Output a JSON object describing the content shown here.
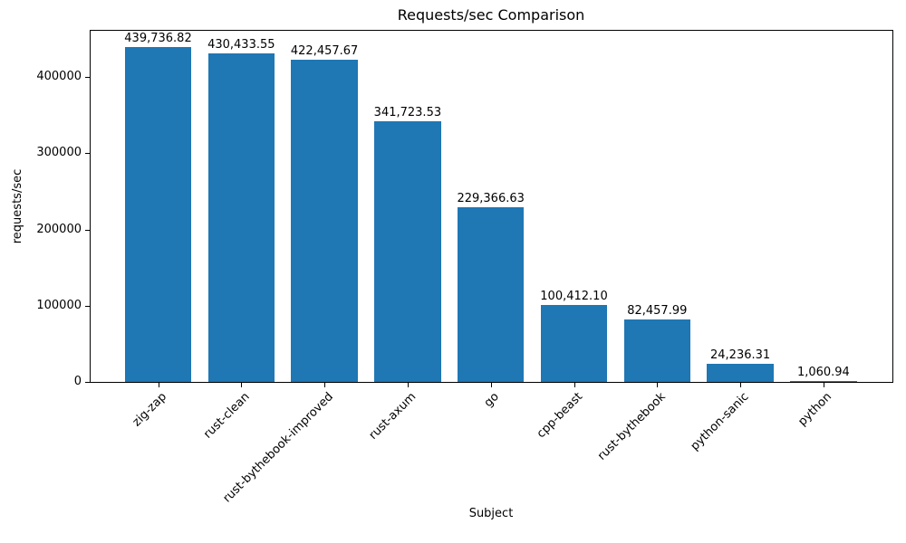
{
  "chart_data": {
    "type": "bar",
    "title": "Requests/sec Comparison",
    "xlabel": "Subject",
    "ylabel": "requests/sec",
    "categories": [
      "zig-zap",
      "rust-clean",
      "rust-bythebook-improved",
      "rust-axum",
      "go",
      "cpp-beast",
      "rust-bythebook",
      "python-sanic",
      "python"
    ],
    "values": [
      439736.82,
      430433.55,
      422457.67,
      341723.53,
      229366.63,
      100412.1,
      82457.99,
      24236.31,
      1060.94
    ],
    "value_labels": [
      "439,736.82",
      "430,433.55",
      "422,457.67",
      "341,723.53",
      "229,366.63",
      "100,412.10",
      "82,457.99",
      "24,236.31",
      "1,060.94"
    ],
    "yticks": [
      0,
      100000,
      200000,
      300000,
      400000
    ],
    "ytick_labels": [
      "0",
      "100000",
      "200000",
      "300000",
      "400000"
    ],
    "ylim": [
      0,
      461724
    ],
    "bar_color": "#1f77b4",
    "background_color": "#ffffff",
    "text_color": "#000000",
    "grid": false,
    "legend": "none",
    "x_tick_rotation_deg": 45
  }
}
